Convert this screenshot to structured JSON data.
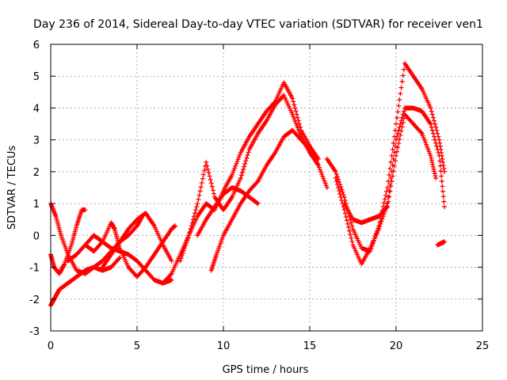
{
  "chart_data": {
    "type": "scatter",
    "title": "Day 236 of 2014, Sidereal Day-to-day VTEC variation (SDTVAR) for receiver ven1",
    "xlabel": "GPS time / hours",
    "ylabel": "SDTVAR / TECUs",
    "xlim": [
      0,
      25
    ],
    "ylim": [
      -3,
      6
    ],
    "xticks": [
      0,
      5,
      10,
      15,
      20,
      25
    ],
    "yticks": [
      -3,
      -2,
      -1,
      0,
      1,
      2,
      3,
      4,
      5,
      6
    ],
    "grid": true,
    "marker": "+",
    "color": "#ff0000",
    "series": [
      {
        "name": "s1",
        "x": [
          0.0,
          0.2,
          0.5,
          1.0,
          1.5,
          2.0,
          2.5,
          3.0,
          3.5,
          4.0,
          4.5,
          5.0,
          5.3
        ],
        "y": [
          -2.2,
          -2.0,
          -1.7,
          -1.5,
          -1.3,
          -1.1,
          -1.0,
          -0.8,
          -0.5,
          -0.2,
          0.0,
          0.3,
          0.6
        ]
      },
      {
        "name": "s2",
        "x": [
          0.0,
          0.3,
          0.6,
          1.0,
          1.5,
          2.0,
          2.5,
          3.0,
          3.5,
          4.0
        ],
        "y": [
          1.0,
          0.6,
          0.0,
          -0.6,
          -1.1,
          -1.2,
          -1.0,
          -1.1,
          -1.0,
          -0.7
        ]
      },
      {
        "name": "s3",
        "x": [
          0.0,
          0.2,
          0.5,
          0.8,
          1.2,
          1.5,
          1.8,
          2.0
        ],
        "y": [
          -0.6,
          -1.0,
          -1.2,
          -0.9,
          -0.3,
          0.3,
          0.8,
          0.8
        ]
      },
      {
        "name": "s4",
        "x": [
          1.0,
          1.5,
          2.0,
          2.5,
          3.0,
          3.5,
          4.0,
          4.5,
          5.0,
          5.5,
          6.0,
          6.5,
          7.0
        ],
        "y": [
          -0.8,
          -0.6,
          -0.3,
          0.0,
          -0.2,
          -0.4,
          -0.5,
          -0.6,
          -0.8,
          -1.1,
          -1.4,
          -1.5,
          -1.4
        ]
      },
      {
        "name": "s5",
        "x": [
          2.0,
          2.5,
          3.0,
          3.5,
          3.7,
          4.0,
          4.5,
          5.0,
          5.5,
          6.0,
          6.5,
          7.0,
          7.2
        ],
        "y": [
          -0.3,
          -0.5,
          -0.2,
          0.4,
          0.2,
          -0.4,
          -1.0,
          -1.3,
          -1.0,
          -0.6,
          -0.2,
          0.2,
          0.3
        ]
      },
      {
        "name": "s6",
        "x": [
          3.0,
          3.5,
          4.0,
          4.5,
          5.0,
          5.5,
          6.0,
          6.5,
          7.0
        ],
        "y": [
          -1.0,
          -0.6,
          -0.2,
          0.2,
          0.5,
          0.7,
          0.3,
          -0.3,
          -0.8
        ]
      },
      {
        "name": "s7",
        "x": [
          6.5,
          7.0,
          7.5,
          8.0,
          8.5,
          9.0,
          9.5,
          10.0,
          10.5,
          11.0,
          11.5,
          12.0,
          12.5,
          13.0,
          13.5,
          14.0,
          14.5,
          15.0,
          15.5
        ],
        "y": [
          -1.5,
          -1.2,
          -0.6,
          0.0,
          0.6,
          1.0,
          0.8,
          1.4,
          1.9,
          2.6,
          3.1,
          3.5,
          3.9,
          4.2,
          4.8,
          4.3,
          3.3,
          2.8,
          2.4
        ]
      },
      {
        "name": "s8",
        "x": [
          7.5,
          8.0,
          8.5,
          9.0,
          9.5,
          10.0,
          10.5,
          11.0,
          11.5,
          12.0,
          12.5,
          13.0,
          13.5,
          14.0,
          14.5,
          15.0,
          15.5
        ],
        "y": [
          -0.8,
          0.0,
          1.0,
          2.3,
          1.2,
          0.8,
          1.2,
          1.8,
          2.7,
          3.2,
          3.6,
          4.1,
          4.4,
          3.8,
          3.1,
          2.6,
          2.2
        ]
      },
      {
        "name": "s9",
        "x": [
          9.3,
          9.6,
          10.0,
          10.5,
          11.0,
          11.5,
          12.0,
          12.5,
          13.0,
          13.5,
          14.0,
          14.5,
          15.0,
          15.5,
          16.0
        ],
        "y": [
          -1.1,
          -0.6,
          0.0,
          0.5,
          1.0,
          1.4,
          1.7,
          2.2,
          2.6,
          3.1,
          3.3,
          3.0,
          2.7,
          2.2,
          1.5
        ]
      },
      {
        "name": "s10",
        "x": [
          8.5,
          9.0,
          9.5,
          10.0,
          10.5,
          11.0,
          11.5,
          12.0
        ],
        "y": [
          0.0,
          0.5,
          0.9,
          1.3,
          1.5,
          1.4,
          1.2,
          1.0
        ]
      },
      {
        "name": "s11",
        "x": [
          16.0,
          16.5,
          17.0,
          17.5,
          18.0,
          18.5,
          19.0,
          19.5,
          20.0,
          20.5,
          21.0,
          21.5,
          22.0,
          22.5,
          22.8
        ],
        "y": [
          2.4,
          2.0,
          1.2,
          0.2,
          -0.4,
          -0.5,
          0.3,
          1.5,
          3.5,
          5.4,
          5.0,
          4.6,
          4.0,
          3.0,
          2.0
        ]
      },
      {
        "name": "s12",
        "x": [
          16.5,
          17.0,
          17.5,
          18.0,
          18.5,
          19.0,
          19.5,
          20.0,
          20.5,
          21.0,
          21.5,
          22.0,
          22.5,
          22.8
        ],
        "y": [
          1.8,
          0.8,
          -0.3,
          -0.9,
          -0.4,
          0.2,
          1.0,
          3.0,
          4.0,
          4.0,
          3.9,
          3.5,
          2.5,
          0.9
        ]
      },
      {
        "name": "s13",
        "x": [
          17.0,
          17.5,
          18.0,
          18.5,
          19.0,
          19.5,
          20.0,
          20.5,
          21.0,
          21.5,
          22.0,
          22.3
        ],
        "y": [
          1.0,
          0.5,
          0.4,
          0.5,
          0.6,
          0.9,
          2.5,
          3.8,
          3.5,
          3.2,
          2.5,
          1.8
        ]
      },
      {
        "name": "s14",
        "x": [
          22.4,
          22.6,
          22.8
        ],
        "y": [
          -0.3,
          -0.25,
          -0.2
        ]
      }
    ]
  }
}
